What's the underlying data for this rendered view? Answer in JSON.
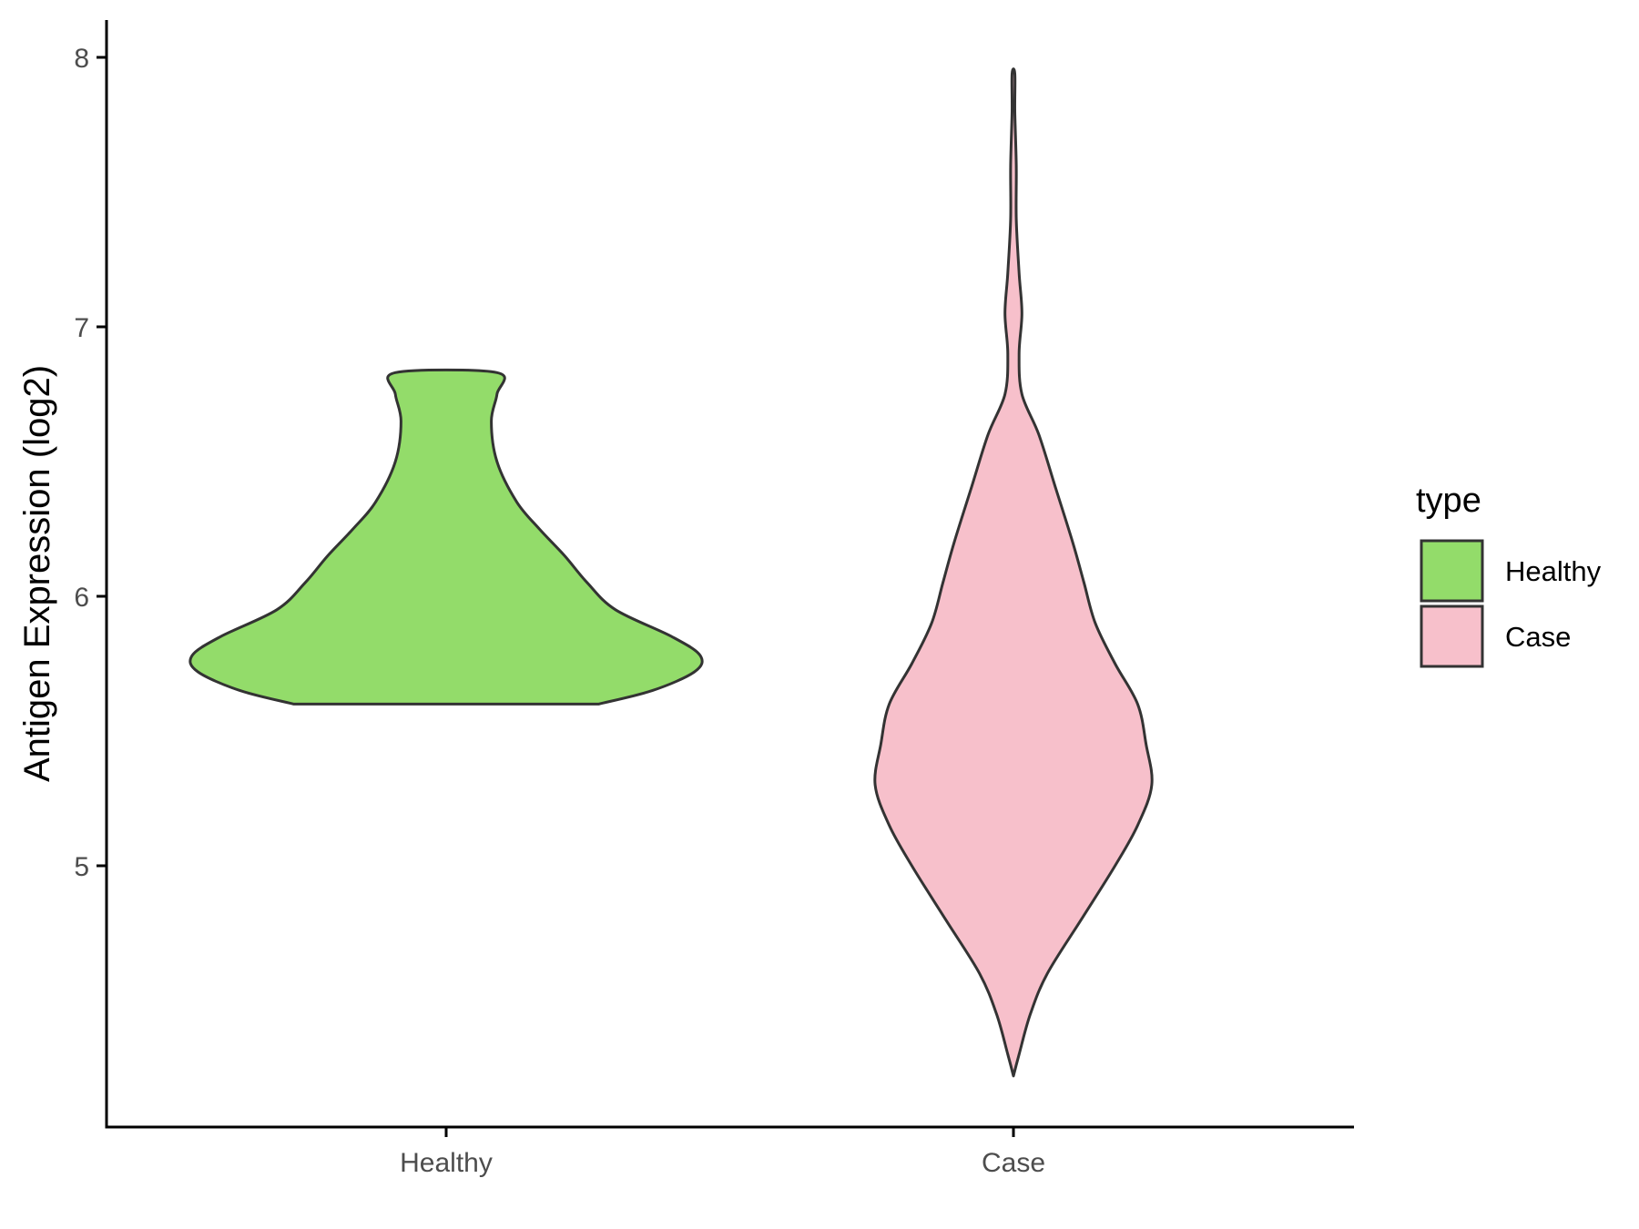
{
  "chart_data": {
    "type": "violin",
    "xlabel": "",
    "ylabel": "Antigen Expression (log2)",
    "ylim": [
      4.05,
      8.15
    ],
    "yticks": [
      5,
      6,
      7,
      8
    ],
    "ytick_labels": [
      "5",
      "6",
      "7",
      "8"
    ],
    "categories": [
      "Healthy",
      "Case"
    ],
    "grid": false,
    "legend": {
      "title": "type",
      "placement": "right",
      "entries": [
        {
          "label": "Healthy",
          "color": "#93dc6a"
        },
        {
          "label": "Case",
          "color": "#f7c0cb"
        }
      ]
    },
    "series": [
      {
        "name": "Healthy",
        "color": "#93dc6a",
        "min": 5.6,
        "max": 6.83,
        "profile": [
          [
            5.6,
            0.54
          ],
          [
            5.65,
            0.73
          ],
          [
            5.72,
            0.88
          ],
          [
            5.78,
            0.9
          ],
          [
            5.85,
            0.8
          ],
          [
            5.95,
            0.6
          ],
          [
            6.05,
            0.5
          ],
          [
            6.15,
            0.42
          ],
          [
            6.25,
            0.33
          ],
          [
            6.35,
            0.25
          ],
          [
            6.5,
            0.18
          ],
          [
            6.65,
            0.16
          ],
          [
            6.75,
            0.18
          ],
          [
            6.83,
            0.18
          ]
        ]
      },
      {
        "name": "Case",
        "color": "#f7c0cb",
        "min": 4.22,
        "max": 7.94,
        "profile": [
          [
            4.22,
            0.0
          ],
          [
            4.3,
            0.02
          ],
          [
            4.45,
            0.06
          ],
          [
            4.6,
            0.12
          ],
          [
            4.8,
            0.24
          ],
          [
            5.0,
            0.36
          ],
          [
            5.15,
            0.44
          ],
          [
            5.3,
            0.49
          ],
          [
            5.45,
            0.47
          ],
          [
            5.6,
            0.44
          ],
          [
            5.75,
            0.36
          ],
          [
            5.9,
            0.29
          ],
          [
            6.05,
            0.25
          ],
          [
            6.2,
            0.21
          ],
          [
            6.4,
            0.15
          ],
          [
            6.6,
            0.09
          ],
          [
            6.75,
            0.03
          ],
          [
            6.9,
            0.02
          ],
          [
            7.05,
            0.03
          ],
          [
            7.2,
            0.02
          ],
          [
            7.4,
            0.01
          ],
          [
            7.6,
            0.01
          ],
          [
            7.8,
            0.005
          ],
          [
            7.94,
            0.005
          ]
        ]
      }
    ]
  }
}
